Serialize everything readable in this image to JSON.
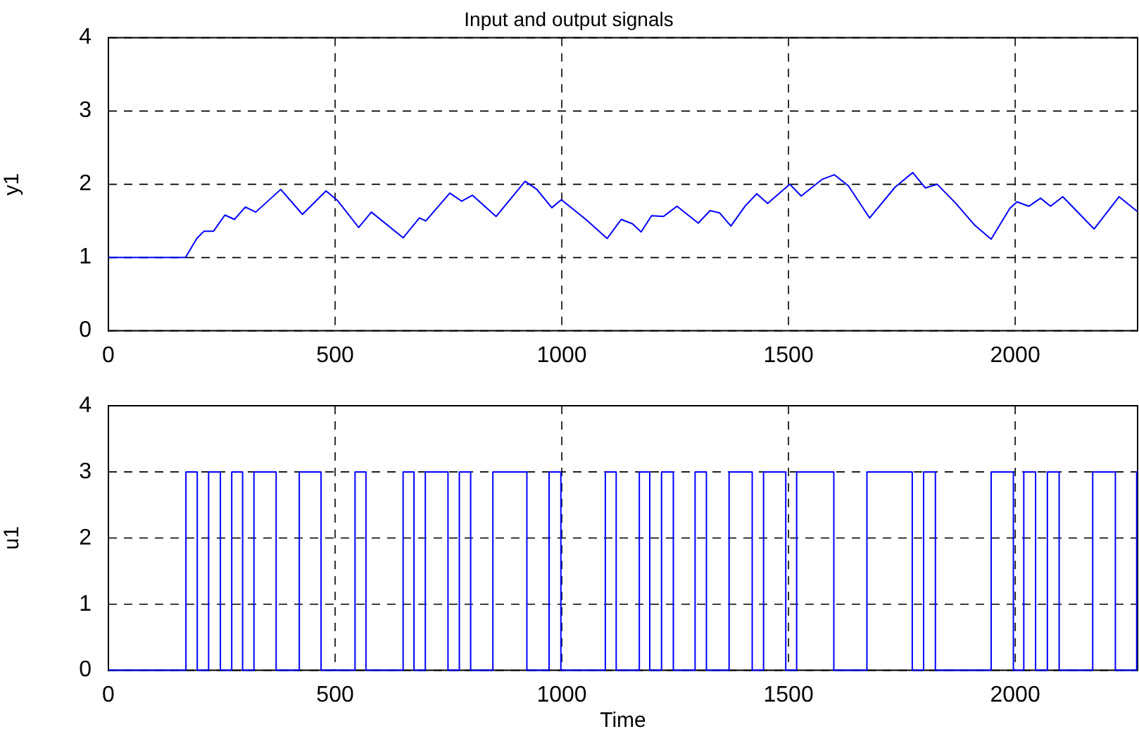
{
  "chart_data": [
    {
      "type": "line",
      "title": "Input and output signals",
      "ylabel": "y1",
      "x": [
        0,
        113,
        170,
        195,
        211,
        232,
        257,
        278,
        302,
        325,
        380,
        428,
        480,
        505,
        552,
        580,
        650,
        686,
        700,
        753,
        779,
        803,
        855,
        919,
        945,
        978,
        999,
        1053,
        1100,
        1131,
        1156,
        1175,
        1198,
        1224,
        1254,
        1301,
        1327,
        1348,
        1373,
        1404,
        1430,
        1454,
        1503,
        1528,
        1575,
        1601,
        1632,
        1679,
        1735,
        1774,
        1802,
        1828,
        1869,
        1911,
        1947,
        1988,
        2004,
        2030,
        2056,
        2078,
        2105,
        2174,
        2229,
        2269
      ],
      "series": [
        {
          "color": "#0000ff",
          "values": [
            1.0,
            1.0,
            1.0,
            1.26,
            1.36,
            1.36,
            1.58,
            1.52,
            1.69,
            1.62,
            1.93,
            1.59,
            1.91,
            1.78,
            1.41,
            1.62,
            1.27,
            1.54,
            1.5,
            1.88,
            1.77,
            1.85,
            1.56,
            2.04,
            1.93,
            1.68,
            1.79,
            1.52,
            1.26,
            1.52,
            1.46,
            1.35,
            1.57,
            1.56,
            1.7,
            1.47,
            1.64,
            1.61,
            1.43,
            1.7,
            1.87,
            1.74,
            2.0,
            1.84,
            2.07,
            2.13,
            1.98,
            1.54,
            1.96,
            2.16,
            1.95,
            2.0,
            1.74,
            1.44,
            1.25,
            1.67,
            1.76,
            1.7,
            1.81,
            1.7,
            1.83,
            1.39,
            1.83,
            1.63
          ]
        }
      ],
      "xlim": [
        0,
        2270
      ],
      "ylim": [
        0,
        4
      ],
      "xticks": [
        0,
        500,
        1000,
        1500,
        2000
      ],
      "yticks": [
        0,
        1,
        2,
        3,
        4
      ],
      "grid": true
    },
    {
      "type": "step",
      "xlabel": "Time",
      "ylabel": "u1",
      "x": [
        0,
        171,
        196,
        221,
        247,
        272,
        296,
        321,
        370,
        421,
        469,
        544,
        568,
        650,
        674,
        699,
        749,
        774,
        799,
        848,
        923,
        972,
        998,
        1096,
        1120,
        1171,
        1194,
        1220,
        1246,
        1294,
        1319,
        1369,
        1420,
        1445,
        1494,
        1518,
        1600,
        1673,
        1773,
        1798,
        1824,
        1947,
        1996,
        2019,
        2045,
        2071,
        2097,
        2171,
        2221,
        2268,
        2270
      ],
      "series": [
        {
          "color": "#0000ff",
          "values": [
            0,
            3,
            0,
            3,
            0,
            3,
            0,
            3,
            0,
            3,
            0,
            3,
            0,
            3,
            0,
            3,
            0,
            3,
            0,
            3,
            0,
            3,
            0,
            3,
            0,
            3,
            0,
            3,
            0,
            3,
            0,
            3,
            0,
            3,
            0,
            3,
            0,
            3,
            0,
            3,
            0,
            3,
            0,
            3,
            0,
            3,
            0,
            3,
            0,
            3,
            3
          ]
        }
      ],
      "xlim": [
        0,
        2270
      ],
      "ylim": [
        0,
        4
      ],
      "xticks": [
        0,
        500,
        1000,
        1500,
        2000
      ],
      "yticks": [
        0,
        1,
        2,
        3,
        4
      ],
      "grid": true
    }
  ]
}
